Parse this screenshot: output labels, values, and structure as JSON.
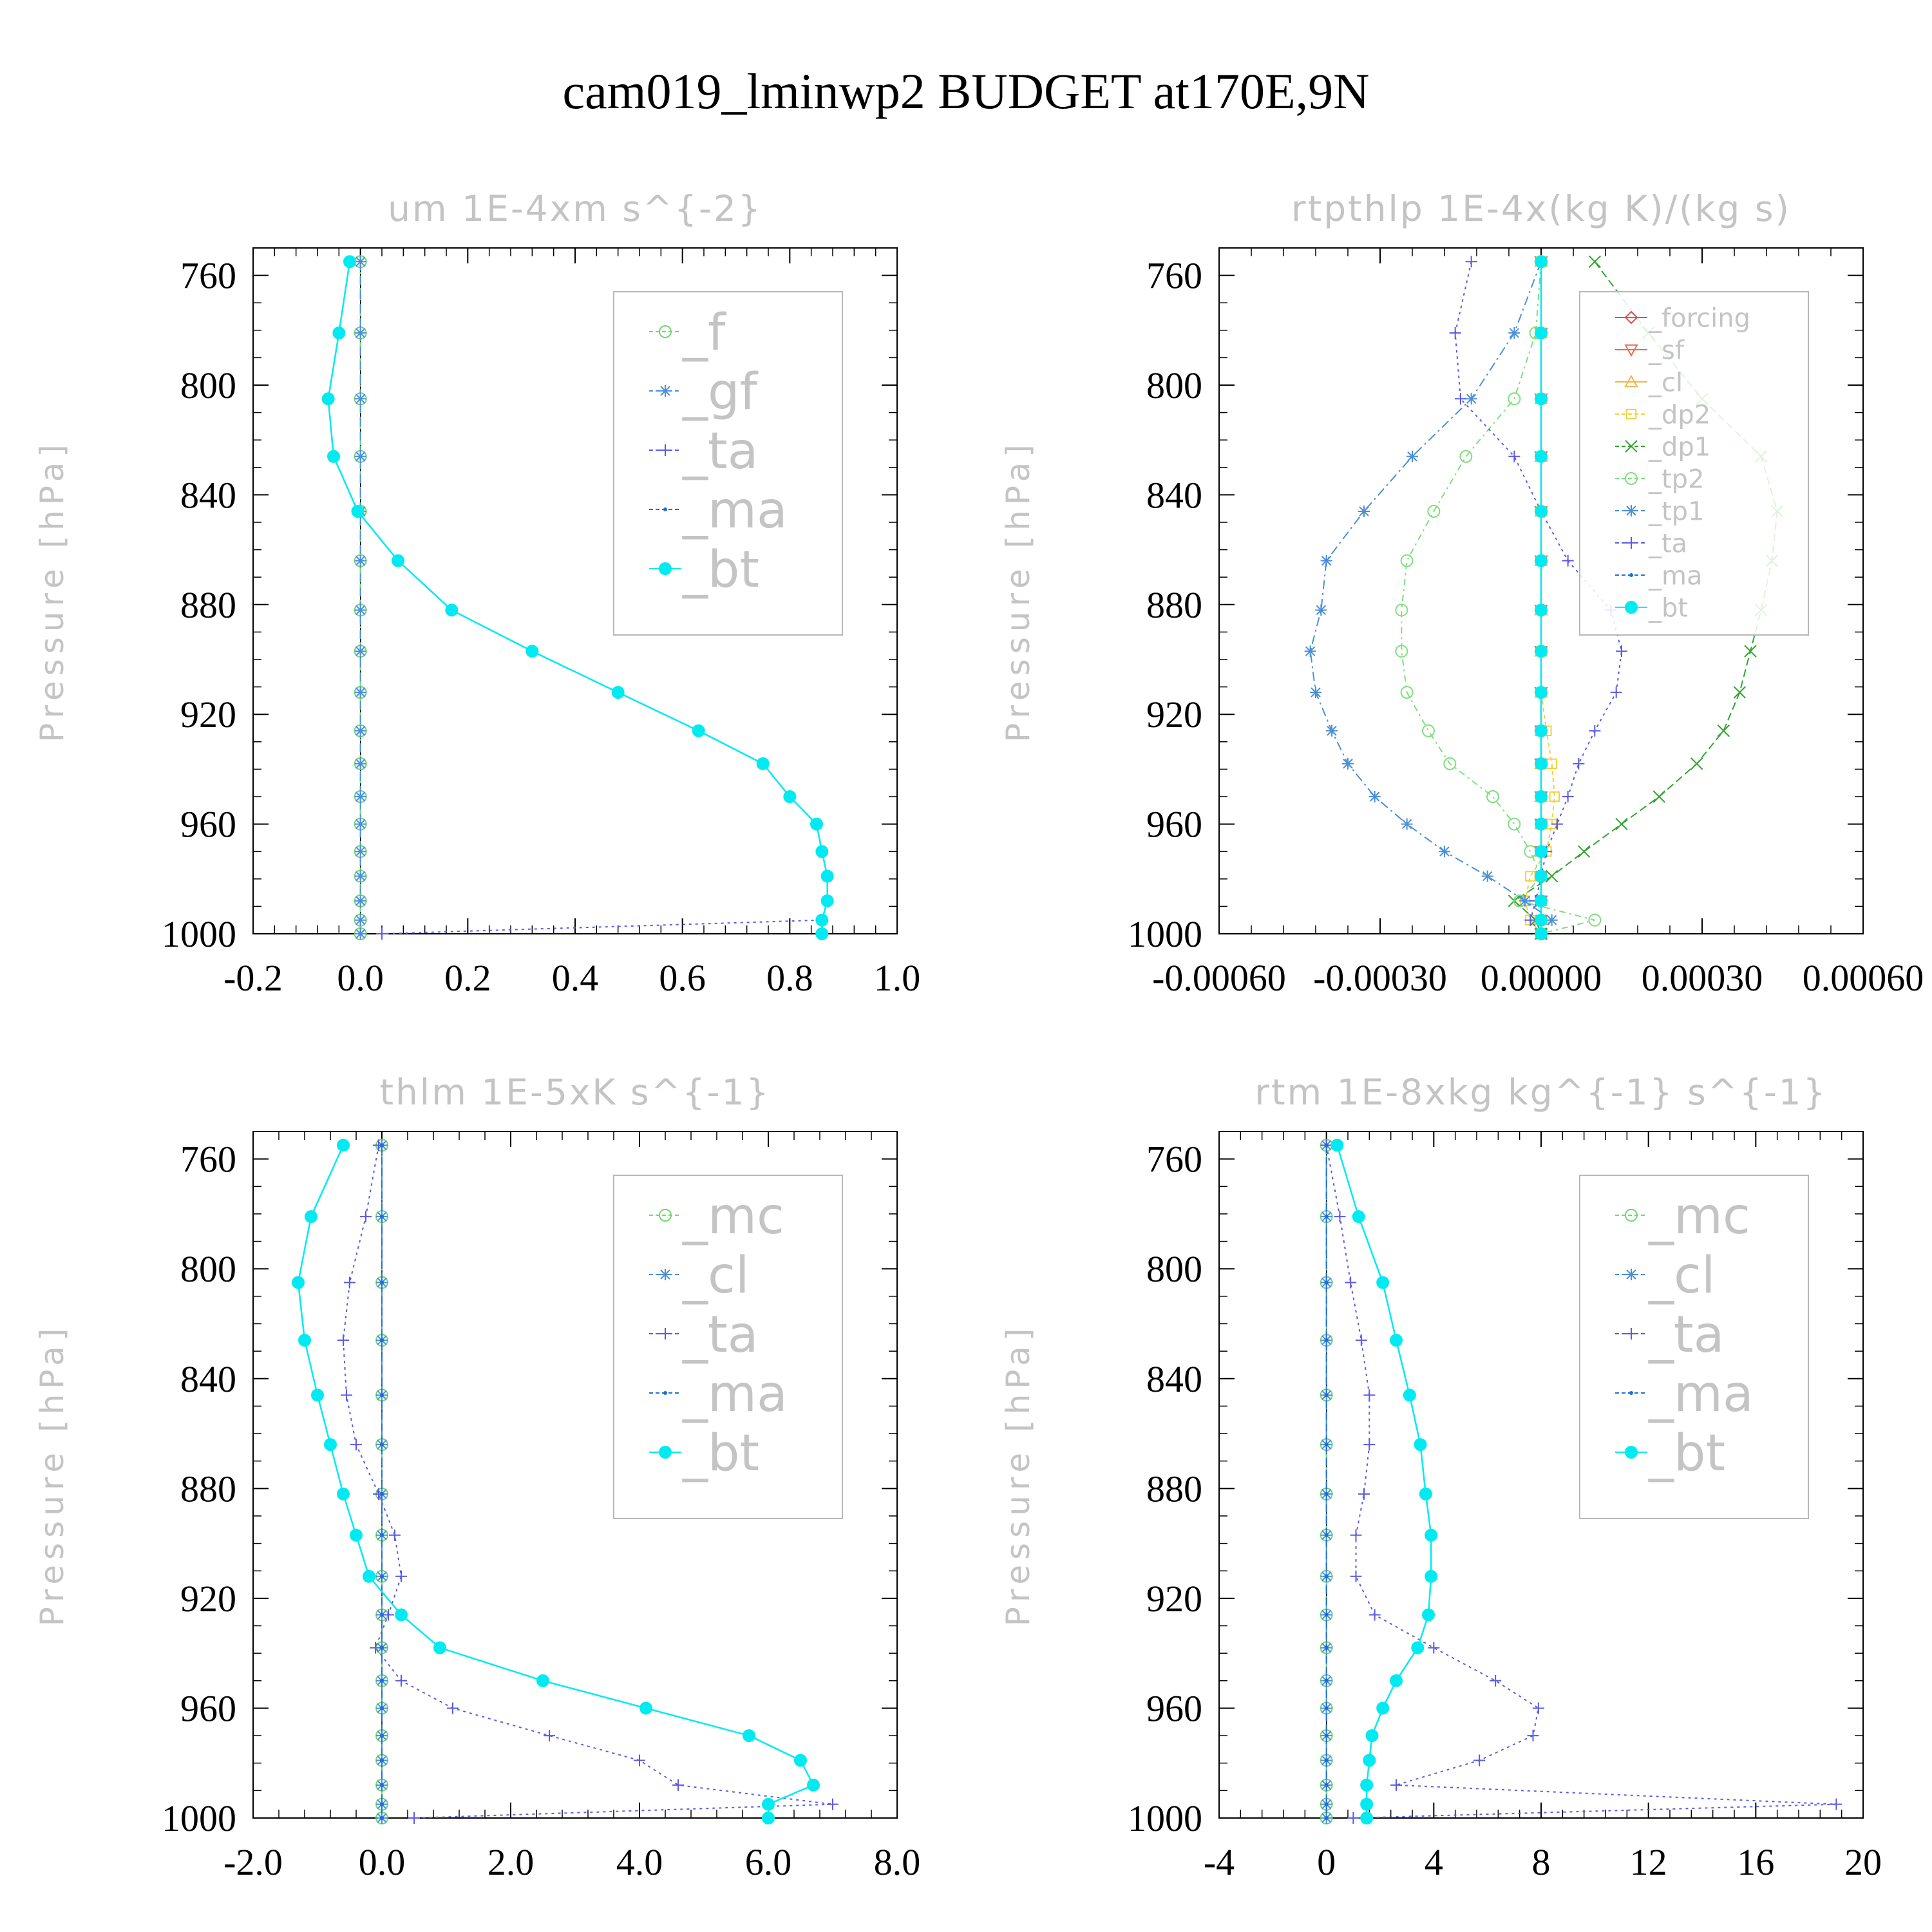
{
  "figure": {
    "title": "cam019_lminwp2  BUDGET at170E,9N"
  },
  "chart_data": [
    {
      "type": "line",
      "title": "um   1E-4xm s^{-2}",
      "ylabel": "Pressure [hPa]",
      "xlim": [
        -0.2,
        1.0
      ],
      "ylim": [
        1000,
        750
      ],
      "xticks": [
        "-0.2",
        "0.0",
        "0.2",
        "0.4",
        "0.6",
        "0.8",
        "1.0"
      ],
      "xtick_values": [
        -0.2,
        0.0,
        0.2,
        0.4,
        0.6,
        0.8,
        1.0
      ],
      "yticks": [
        "760",
        "800",
        "840",
        "880",
        "920",
        "960",
        "1000"
      ],
      "ytick_values": [
        760,
        800,
        840,
        880,
        920,
        960,
        1000
      ],
      "pressure": [
        755,
        781,
        805,
        826,
        846,
        864,
        882,
        897,
        912,
        926,
        938,
        950,
        960,
        970,
        979,
        988,
        995,
        1000
      ],
      "series": [
        {
          "name": "_f",
          "color": "#6fd86f",
          "marker": "circle",
          "dash": "10,6,3,6",
          "values": [
            0,
            0,
            0,
            0,
            0,
            0,
            0,
            0,
            0,
            0,
            0,
            0,
            0,
            0,
            0,
            0,
            0,
            0
          ]
        },
        {
          "name": "_gf",
          "color": "#4a8fd8",
          "marker": "star",
          "dash": "14,8",
          "values": [
            0,
            0,
            0,
            0,
            0,
            0,
            0,
            0,
            0,
            0,
            0,
            0,
            0,
            0,
            0,
            0,
            0,
            0
          ]
        },
        {
          "name": "_ta",
          "color": "#5a5ae6",
          "marker": "plus",
          "dash": "4,6",
          "values": [
            -0.02,
            -0.04,
            -0.06,
            -0.05,
            -0.005,
            0.07,
            0.17,
            0.32,
            0.48,
            0.63,
            0.75,
            0.8,
            0.85,
            0.86,
            0.87,
            0.87,
            0.86,
            0.04
          ]
        },
        {
          "name": "_ma",
          "color": "#1d6fd6",
          "marker": "dot",
          "dash": "12,6",
          "values": [
            -0.02,
            -0.04,
            -0.06,
            -0.05,
            -0.005,
            0.07,
            0.17,
            0.32,
            0.48,
            0.63,
            0.75,
            0.8,
            0.85,
            0.86,
            0.87,
            0.87,
            0.86,
            0.86
          ]
        },
        {
          "name": "_bt",
          "color": "#00eaf2",
          "marker": "filled-circle",
          "dash": "",
          "values": [
            -0.02,
            -0.04,
            -0.06,
            -0.05,
            -0.005,
            0.07,
            0.17,
            0.32,
            0.48,
            0.63,
            0.75,
            0.8,
            0.85,
            0.86,
            0.87,
            0.87,
            0.86,
            0.86
          ]
        }
      ],
      "legend_position": "top-right"
    },
    {
      "type": "line",
      "title": "rtpthlp   1E-4x(kg K)/(kg s)",
      "ylabel": "Pressure [hPa]",
      "xlim": [
        -0.0006,
        0.0006
      ],
      "ylim": [
        1000,
        750
      ],
      "xticks": [
        "-0.00060",
        "-0.00030",
        "0.00000",
        "0.00030",
        "0.00060"
      ],
      "xtick_values": [
        -0.0006,
        -0.0003,
        0.0,
        0.0003,
        0.0006
      ],
      "yticks": [
        "760",
        "800",
        "840",
        "880",
        "920",
        "960",
        "1000"
      ],
      "ytick_values": [
        760,
        800,
        840,
        880,
        920,
        960,
        1000
      ],
      "pressure": [
        755,
        781,
        805,
        826,
        846,
        864,
        882,
        897,
        912,
        926,
        938,
        950,
        960,
        970,
        979,
        988,
        995,
        1000
      ],
      "series": [
        {
          "name": "_forcing",
          "color": "#e84a4a",
          "marker": "diamond",
          "dash": "",
          "values": [
            0,
            0,
            0,
            0,
            0,
            0,
            0,
            0,
            0,
            0,
            0,
            0,
            0,
            0,
            0,
            0,
            0,
            0
          ]
        },
        {
          "name": "_sf",
          "color": "#e86a4a",
          "marker": "triangle-down",
          "dash": "",
          "values": [
            0,
            0,
            0,
            0,
            0,
            0,
            0,
            0,
            0,
            0,
            0,
            0,
            0,
            0,
            0,
            0,
            0,
            0
          ]
        },
        {
          "name": "_cl",
          "color": "#f0b44a",
          "marker": "triangle",
          "dash": "",
          "values": [
            0,
            0,
            0,
            0,
            0,
            0,
            0,
            0,
            0,
            0,
            0,
            0,
            0,
            0,
            0,
            0,
            0,
            0
          ]
        },
        {
          "name": "_dp2",
          "color": "#f2d13a",
          "marker": "square",
          "dash": "6,5",
          "values": [
            0,
            0,
            0,
            0,
            0,
            0,
            0,
            0,
            0,
            1e-05,
            2e-05,
            2.5e-05,
            2e-05,
            1e-05,
            -2e-05,
            -3e-05,
            -2e-05,
            0
          ]
        },
        {
          "name": "_dp1",
          "color": "#2fa52f",
          "marker": "x",
          "dash": "12,6",
          "values": [
            0.0001,
            0.0002,
            0.0003,
            0.00041,
            0.00044,
            0.00043,
            0.00041,
            0.00039,
            0.00037,
            0.00034,
            0.00029,
            0.00022,
            0.00015,
            8e-05,
            2e-05,
            -5e-05,
            -1e-05,
            0
          ]
        },
        {
          "name": "_tp2",
          "color": "#7ee07e",
          "marker": "circle",
          "dash": "10,6,3,6",
          "values": [
            0,
            -1e-05,
            -5e-05,
            -0.00014,
            -0.0002,
            -0.00025,
            -0.00026,
            -0.00026,
            -0.00025,
            -0.00021,
            -0.00017,
            -9e-05,
            -5e-05,
            -2e-05,
            0,
            -4e-05,
            0.0001,
            0
          ]
        },
        {
          "name": "_tp1",
          "color": "#4a8fd8",
          "marker": "star",
          "dash": "14,6,3,6",
          "values": [
            0,
            -5e-05,
            -0.00013,
            -0.00024,
            -0.00033,
            -0.0004,
            -0.00041,
            -0.00043,
            -0.00042,
            -0.00039,
            -0.00036,
            -0.00031,
            -0.00025,
            -0.00018,
            -0.0001,
            -3e-05,
            2e-05,
            0
          ]
        },
        {
          "name": "_ta",
          "color": "#5a5ae6",
          "marker": "plus",
          "dash": "4,6",
          "values": [
            -0.00013,
            -0.00016,
            -0.00015,
            -5e-05,
            0,
            5e-05,
            0.00013,
            0.00015,
            0.00014,
            0.0001,
            7e-05,
            5e-05,
            3e-05,
            1e-05,
            0,
            -1e-05,
            -2e-05,
            0
          ]
        },
        {
          "name": "_ma",
          "color": "#1d6fd6",
          "marker": "dot",
          "dash": "12,6",
          "values": [
            0,
            0,
            0,
            0,
            0,
            0,
            0,
            0,
            0,
            0,
            0,
            0,
            0,
            0,
            0,
            0,
            0,
            0
          ]
        },
        {
          "name": "_bt",
          "color": "#00eaf2",
          "marker": "filled-circle",
          "dash": "",
          "values": [
            0,
            0,
            0,
            0,
            0,
            0,
            0,
            0,
            0,
            0,
            0,
            0,
            0,
            0,
            0,
            0,
            0,
            0
          ]
        }
      ],
      "legend_position": "top-right"
    },
    {
      "type": "line",
      "title": "thlm   1E-5xK s^{-1}",
      "ylabel": "Pressure [hPa]",
      "xlim": [
        -2.0,
        8.0
      ],
      "ylim": [
        1000,
        750
      ],
      "xticks": [
        "-2.0",
        "0.0",
        "2.0",
        "4.0",
        "6.0",
        "8.0"
      ],
      "xtick_values": [
        -2.0,
        0.0,
        2.0,
        4.0,
        6.0,
        8.0
      ],
      "yticks": [
        "760",
        "800",
        "840",
        "880",
        "920",
        "960",
        "1000"
      ],
      "ytick_values": [
        760,
        800,
        840,
        880,
        920,
        960,
        1000
      ],
      "pressure": [
        755,
        781,
        805,
        826,
        846,
        864,
        882,
        897,
        912,
        926,
        938,
        950,
        960,
        970,
        979,
        988,
        995,
        1000
      ],
      "series": [
        {
          "name": "_mc",
          "color": "#6fd86f",
          "marker": "circle",
          "dash": "10,6,3,6",
          "values": [
            0,
            0,
            0,
            0,
            0,
            0,
            0,
            0,
            0,
            0,
            0,
            0,
            0,
            0,
            0,
            0,
            0,
            0
          ]
        },
        {
          "name": "_cl",
          "color": "#4a8fd8",
          "marker": "star",
          "dash": "14,8",
          "values": [
            0,
            0,
            0,
            0,
            0,
            0,
            0,
            0,
            0,
            0,
            0,
            0,
            0,
            0,
            0,
            0,
            0,
            0
          ]
        },
        {
          "name": "_ta",
          "color": "#5a5ae6",
          "marker": "plus",
          "dash": "4,6",
          "values": [
            -0.05,
            -0.25,
            -0.5,
            -0.6,
            -0.55,
            -0.4,
            -0.05,
            0.2,
            0.3,
            0.1,
            -0.1,
            0.3,
            1.1,
            2.6,
            4.0,
            4.6,
            7.0,
            0.5
          ]
        },
        {
          "name": "_ma",
          "color": "#1d6fd6",
          "marker": "dot",
          "dash": "12,6",
          "values": [
            0,
            0,
            0,
            0,
            0,
            0,
            0,
            0,
            0,
            0,
            0,
            0,
            0,
            0,
            0,
            0,
            0,
            0
          ]
        },
        {
          "name": "_bt",
          "color": "#00eaf2",
          "marker": "filled-circle",
          "dash": "",
          "values": [
            -0.6,
            -1.1,
            -1.3,
            -1.2,
            -1.0,
            -0.8,
            -0.6,
            -0.4,
            -0.2,
            0.3,
            0.9,
            2.5,
            4.1,
            5.7,
            6.5,
            6.7,
            6.0,
            6.0
          ]
        }
      ],
      "legend_position": "top-right"
    },
    {
      "type": "line",
      "title": "rtm   1E-8xkg kg^{-1} s^{-1}",
      "ylabel": "Pressure [hPa]",
      "xlim": [
        -4,
        20
      ],
      "ylim": [
        1000,
        750
      ],
      "xticks": [
        "-4",
        "0",
        "4",
        "8",
        "12",
        "16",
        "20"
      ],
      "xtick_values": [
        -4,
        0,
        4,
        8,
        12,
        16,
        20
      ],
      "yticks": [
        "760",
        "800",
        "840",
        "880",
        "920",
        "960",
        "1000"
      ],
      "ytick_values": [
        760,
        800,
        840,
        880,
        920,
        960,
        1000
      ],
      "pressure": [
        755,
        781,
        805,
        826,
        846,
        864,
        882,
        897,
        912,
        926,
        938,
        950,
        960,
        970,
        979,
        988,
        995,
        1000
      ],
      "series": [
        {
          "name": "_mc",
          "color": "#6fd86f",
          "marker": "circle",
          "dash": "10,6,3,6",
          "values": [
            0,
            0,
            0,
            0,
            0,
            0,
            0,
            0,
            0,
            0,
            0,
            0,
            0,
            0,
            0,
            0,
            0,
            0
          ]
        },
        {
          "name": "_cl",
          "color": "#4a8fd8",
          "marker": "star",
          "dash": "14,8",
          "values": [
            0,
            0,
            0,
            0,
            0,
            0,
            0,
            0,
            0,
            0,
            0,
            0,
            0,
            0,
            0,
            0,
            0,
            0
          ]
        },
        {
          "name": "_ta",
          "color": "#5a5ae6",
          "marker": "plus",
          "dash": "4,6",
          "values": [
            0,
            0.5,
            0.9,
            1.3,
            1.6,
            1.6,
            1.4,
            1.1,
            1.1,
            1.8,
            4.0,
            6.3,
            7.9,
            7.7,
            5.7,
            2.6,
            19.0,
            1.0
          ]
        },
        {
          "name": "_ma",
          "color": "#1d6fd6",
          "marker": "dot",
          "dash": "12,6",
          "values": [
            0,
            0,
            0,
            0,
            0,
            0,
            0,
            0,
            0,
            0,
            0,
            0,
            0,
            0,
            0,
            0,
            0,
            0
          ]
        },
        {
          "name": "_bt",
          "color": "#00eaf2",
          "marker": "filled-circle",
          "dash": "",
          "values": [
            0.4,
            1.2,
            2.1,
            2.6,
            3.1,
            3.5,
            3.7,
            3.9,
            3.9,
            3.8,
            3.4,
            2.6,
            2.1,
            1.7,
            1.6,
            1.5,
            1.5,
            1.5
          ]
        }
      ],
      "legend_position": "top-right"
    }
  ]
}
